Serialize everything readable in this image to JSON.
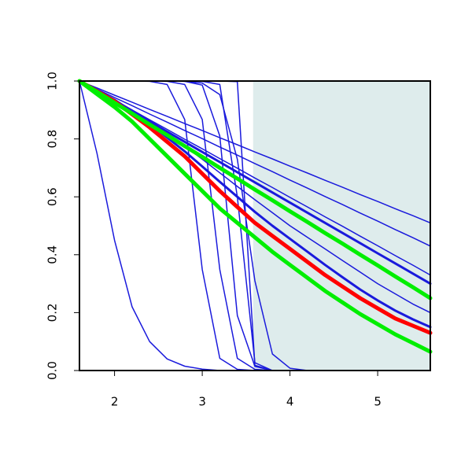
{
  "chart_data": {
    "type": "line",
    "x": [
      1.6,
      1.8,
      2.0,
      2.2,
      2.4,
      2.6,
      2.8,
      3.0,
      3.2,
      3.4,
      3.6,
      3.8,
      4.0,
      4.2,
      4.4,
      4.6,
      4.8,
      5.0,
      5.2,
      5.4,
      5.6
    ],
    "xlim": [
      1.6,
      5.6
    ],
    "ylim": [
      0,
      1
    ],
    "xticks": [
      2,
      3,
      4,
      5
    ],
    "yticks": [
      {
        "value": 0,
        "label": "0.0"
      },
      0.2,
      0.4,
      0.6,
      0.8,
      {
        "value": 1,
        "label": "1.0"
      }
    ],
    "shaded_region": {
      "x_range": [
        3.58,
        5.6
      ],
      "color": "#deecec"
    },
    "series": [
      {
        "color": "#1a1adc",
        "line_width": 1.5,
        "values": [
          1,
          0.976,
          0.951,
          0.927,
          0.902,
          0.878,
          0.853,
          0.829,
          0.804,
          0.78,
          0.755,
          0.731,
          0.706,
          0.682,
          0.657,
          0.633,
          0.608,
          0.584,
          0.559,
          0.535,
          0.51
        ]
      },
      {
        "color": "#1a1adc",
        "line_width": 1.5,
        "values": [
          1,
          0.972,
          0.943,
          0.915,
          0.886,
          0.858,
          0.829,
          0.801,
          0.772,
          0.744,
          0.715,
          0.687,
          0.658,
          0.63,
          0.601,
          0.573,
          0.544,
          0.516,
          0.487,
          0.459,
          0.43
        ]
      },
      {
        "color": "#1a1adc",
        "line_width": 1.5,
        "values": [
          1,
          0.967,
          0.933,
          0.9,
          0.866,
          0.833,
          0.799,
          0.766,
          0.732,
          0.699,
          0.665,
          0.632,
          0.598,
          0.565,
          0.531,
          0.498,
          0.464,
          0.431,
          0.397,
          0.364,
          0.33
        ]
      },
      {
        "color": "#1a1adc",
        "line_width": 3,
        "values": [
          1,
          0.965,
          0.93,
          0.895,
          0.86,
          0.825,
          0.79,
          0.755,
          0.72,
          0.685,
          0.65,
          0.615,
          0.58,
          0.545,
          0.51,
          0.475,
          0.44,
          0.405,
          0.37,
          0.335,
          0.3
        ]
      },
      {
        "color": "#1a1adc",
        "line_width": 1.5,
        "values": [
          1,
          0.968,
          0.935,
          0.9,
          0.86,
          0.82,
          0.775,
          0.73,
          0.683,
          0.636,
          0.59,
          0.545,
          0.5,
          0.46,
          0.42,
          0.38,
          0.34,
          0.3,
          0.265,
          0.23,
          0.2
        ]
      },
      {
        "color": "#1a1adc",
        "line_width": 3,
        "values": [
          1,
          0.968,
          0.935,
          0.895,
          0.852,
          0.805,
          0.757,
          0.705,
          0.652,
          0.6,
          0.548,
          0.5,
          0.455,
          0.41,
          0.365,
          0.322,
          0.28,
          0.242,
          0.207,
          0.177,
          0.15
        ]
      },
      {
        "color": "#1a1adc",
        "line_width": 1.5,
        "values": [
          1,
          0.75,
          0.45,
          0.22,
          0.1,
          0.04,
          0.015,
          0.005,
          0,
          0,
          0,
          0,
          0,
          0,
          0,
          0,
          0,
          0,
          0,
          0,
          0
        ]
      },
      {
        "color": "#1a1adc",
        "line_width": 1.5,
        "values": [
          1,
          1,
          1,
          1,
          0.999,
          0.988,
          0.867,
          0.349,
          0.042,
          0.004,
          0,
          0,
          0,
          0,
          0,
          0,
          0,
          0,
          0,
          0,
          0
        ]
      },
      {
        "color": "#1a1adc",
        "line_width": 1.5,
        "values": [
          1,
          1,
          1,
          1,
          1,
          0.999,
          0.988,
          0.867,
          0.349,
          0.042,
          0.004,
          0,
          0,
          0,
          0,
          0,
          0,
          0,
          0,
          0,
          0
        ]
      },
      {
        "color": "#1a1adc",
        "line_width": 1.5,
        "values": [
          1,
          1,
          1,
          1,
          1,
          1,
          0.999,
          0.986,
          0.81,
          0.19,
          0.014,
          0,
          0,
          0,
          0,
          0,
          0,
          0,
          0,
          0,
          0
        ]
      },
      {
        "color": "#1a1adc",
        "line_width": 1.5,
        "values": [
          1,
          1,
          1,
          1,
          1,
          1,
          1,
          0.999,
          0.988,
          0.6,
          0.027,
          0,
          0,
          0,
          0,
          0,
          0,
          0,
          0,
          0,
          0
        ]
      },
      {
        "color": "#1a1adc",
        "line_width": 1.5,
        "values": [
          1,
          1,
          1,
          1,
          1,
          1,
          1,
          1,
          1,
          0.998,
          0.018,
          0,
          0,
          0,
          0,
          0,
          0,
          0,
          0,
          0,
          0
        ]
      },
      {
        "color": "#1a1adc",
        "line_width": 1.5,
        "values": [
          1,
          1,
          1,
          1,
          1,
          1,
          0.999,
          0.993,
          0.953,
          0.73,
          0.31,
          0.057,
          0.008,
          0,
          0,
          0,
          0,
          0,
          0,
          0,
          0
        ]
      },
      {
        "color": "#ff0000",
        "line_width": 5,
        "values": [
          1,
          0.965,
          0.93,
          0.885,
          0.84,
          0.79,
          0.74,
          0.68,
          0.62,
          0.565,
          0.51,
          0.465,
          0.42,
          0.375,
          0.33,
          0.29,
          0.25,
          0.215,
          0.18,
          0.155,
          0.13
        ]
      },
      {
        "color": "#00ee00",
        "line_width": 5,
        "values": [
          1,
          0.963,
          0.925,
          0.888,
          0.85,
          0.813,
          0.775,
          0.738,
          0.7,
          0.663,
          0.625,
          0.588,
          0.55,
          0.513,
          0.475,
          0.438,
          0.4,
          0.363,
          0.325,
          0.288,
          0.25
        ]
      },
      {
        "color": "#00ee00",
        "line_width": 5,
        "values": [
          1,
          0.955,
          0.91,
          0.86,
          0.8,
          0.74,
          0.68,
          0.62,
          0.56,
          0.51,
          0.46,
          0.41,
          0.365,
          0.32,
          0.275,
          0.235,
          0.195,
          0.16,
          0.125,
          0.095,
          0.065
        ]
      }
    ]
  }
}
